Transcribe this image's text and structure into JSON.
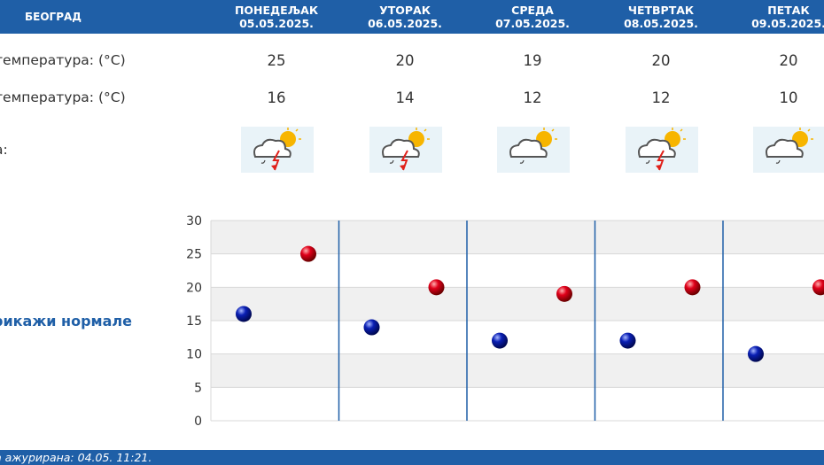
{
  "header": {
    "city": "БЕОГРАД",
    "days": [
      {
        "name": "ПОНЕДЕЉАК",
        "date": "05.05.2025."
      },
      {
        "name": "УТОРАК",
        "date": "06.05.2025."
      },
      {
        "name": "СРЕДА",
        "date": "07.05.2025."
      },
      {
        "name": "ЧЕТВРТАК",
        "date": "08.05.2025."
      },
      {
        "name": "ПЕТАК",
        "date": "09.05.2025."
      }
    ]
  },
  "rows": {
    "max_label": "температура: (°C)",
    "min_label": "температура: (°C)",
    "weather_label": "а:"
  },
  "max_temps": [
    "25",
    "20",
    "19",
    "20",
    "20"
  ],
  "min_temps": [
    "16",
    "14",
    "12",
    "12",
    "10"
  ],
  "weather_icons": [
    "cloud-sun-thunder-icon",
    "cloud-sun-thunder-icon",
    "cloud-sun-rain-icon",
    "cloud-sun-thunder-icon",
    "cloud-sun-rain-icon"
  ],
  "toggle": {
    "label": "рикажи нормале"
  },
  "footer": {
    "updated": "а ажурирана:  04.05.  11:21."
  },
  "colors": {
    "header_bg": "#1f5fa7",
    "max_marker": "#e0001a",
    "min_marker": "#0a1fb4",
    "divider": "#1f5fa7",
    "band": "#f0f0f0"
  },
  "chart_data": {
    "type": "scatter",
    "categories": [
      "05.05.2025.",
      "06.05.2025.",
      "07.05.2025.",
      "08.05.2025.",
      "09.05.2025."
    ],
    "series": [
      {
        "values": [
          16,
          14,
          12,
          12,
          10
        ]
      },
      {
        "values": [
          25,
          20,
          19,
          20,
          20
        ]
      }
    ],
    "yticks": [
      "0",
      "5",
      "10",
      "15",
      "20",
      "25",
      "30"
    ],
    "ylim": [
      0,
      30
    ],
    "grid": true,
    "alternating_bands": true
  }
}
